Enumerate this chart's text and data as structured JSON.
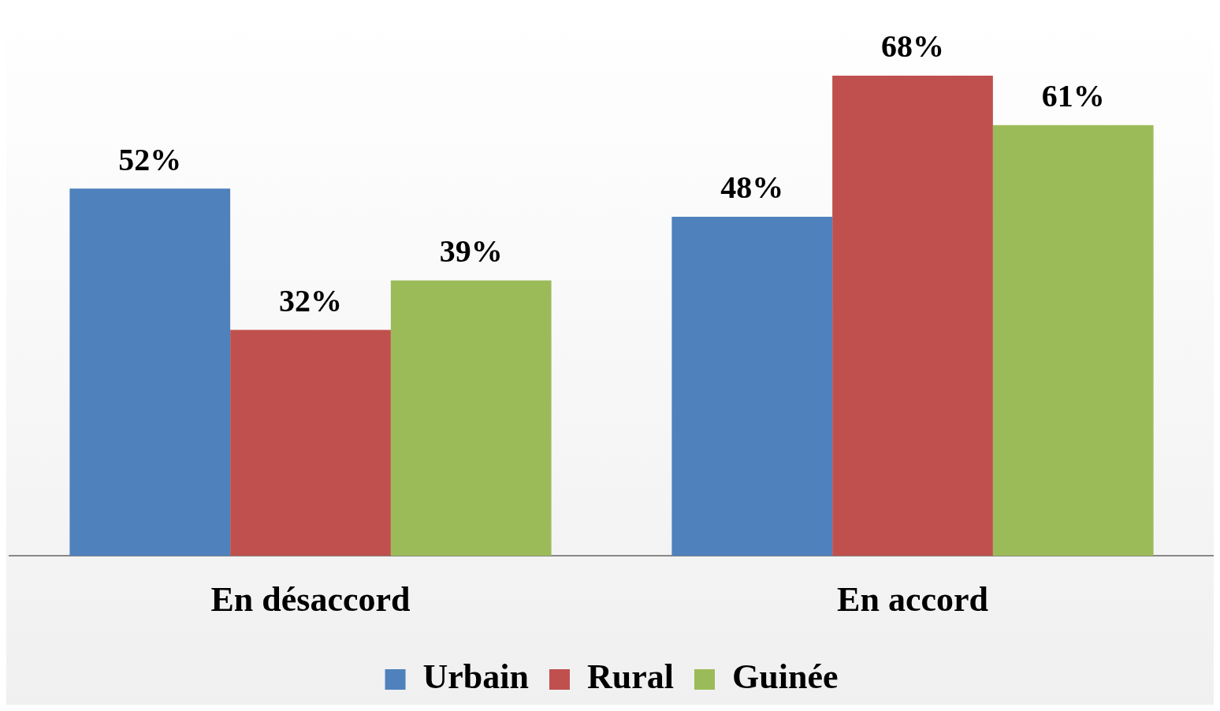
{
  "chart_data": {
    "type": "bar",
    "categories": [
      "En désaccord",
      "En accord"
    ],
    "series": [
      {
        "name": "Urbain",
        "color": "#4f81bd",
        "values": [
          52,
          48
        ],
        "value_labels": [
          "52%",
          "48%"
        ]
      },
      {
        "name": "Rural",
        "color": "#c0504d",
        "values": [
          32,
          68
        ],
        "value_labels": [
          "32%",
          "68%"
        ]
      },
      {
        "name": "Guinée",
        "color": "#9bbb59",
        "values": [
          39,
          61
        ],
        "value_labels": [
          "39%",
          "61%"
        ]
      }
    ],
    "legend": "bottom",
    "grid": false
  }
}
